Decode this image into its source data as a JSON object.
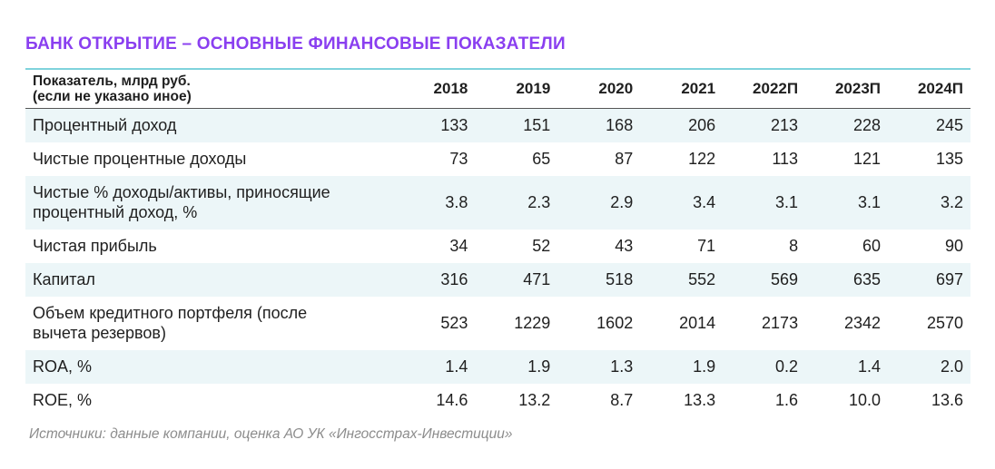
{
  "title": "БАНК ОТКРЫТИЕ – ОСНОВНЫЕ ФИНАНСОВЫЕ ПОКАЗАТЕЛИ",
  "table": {
    "header_label_line1": "Показатель, млрд руб.",
    "header_label_line2": "(если не указано иное)",
    "years": [
      "2018",
      "2019",
      "2020",
      "2021",
      "2022П",
      "2023П",
      "2024П"
    ],
    "rows": [
      {
        "label": "Процентный доход",
        "values": [
          "133",
          "151",
          "168",
          "206",
          "213",
          "228",
          "245"
        ]
      },
      {
        "label": "Чистые процентные доходы",
        "values": [
          "73",
          "65",
          "87",
          "122",
          "113",
          "121",
          "135"
        ]
      },
      {
        "label_line1": "Чистые % доходы/активы, приносящие",
        "label_line2": "процентный доход, %",
        "values": [
          "3.8",
          "2.3",
          "2.9",
          "3.4",
          "3.1",
          "3.1",
          "3.2"
        ]
      },
      {
        "label": "Чистая прибыль",
        "values": [
          "34",
          "52",
          "43",
          "71",
          "8",
          "60",
          "90"
        ]
      },
      {
        "label": "Капитал",
        "values": [
          "316",
          "471",
          "518",
          "552",
          "569",
          "635",
          "697"
        ]
      },
      {
        "label_line1": "Объем кредитного портфеля (после",
        "label_line2": "вычета резервов)",
        "values": [
          "523",
          "1229",
          "1602",
          "2014",
          "2173",
          "2342",
          "2570"
        ]
      },
      {
        "label": "ROA, %",
        "values": [
          "1.4",
          "1.9",
          "1.3",
          "1.9",
          "0.2",
          "1.4",
          "2.0"
        ]
      },
      {
        "label": "ROE, %",
        "values": [
          "14.6",
          "13.2",
          "8.7",
          "13.3",
          "1.6",
          "10.0",
          "13.6"
        ]
      }
    ]
  },
  "source": "Источники: данные компании, оценка АО УК «Ингосстрах-Инвестиции»",
  "colors": {
    "title": "#8a3ff0",
    "row_shade": "#ecf6f8",
    "top_rule": "#7fd3dc"
  }
}
